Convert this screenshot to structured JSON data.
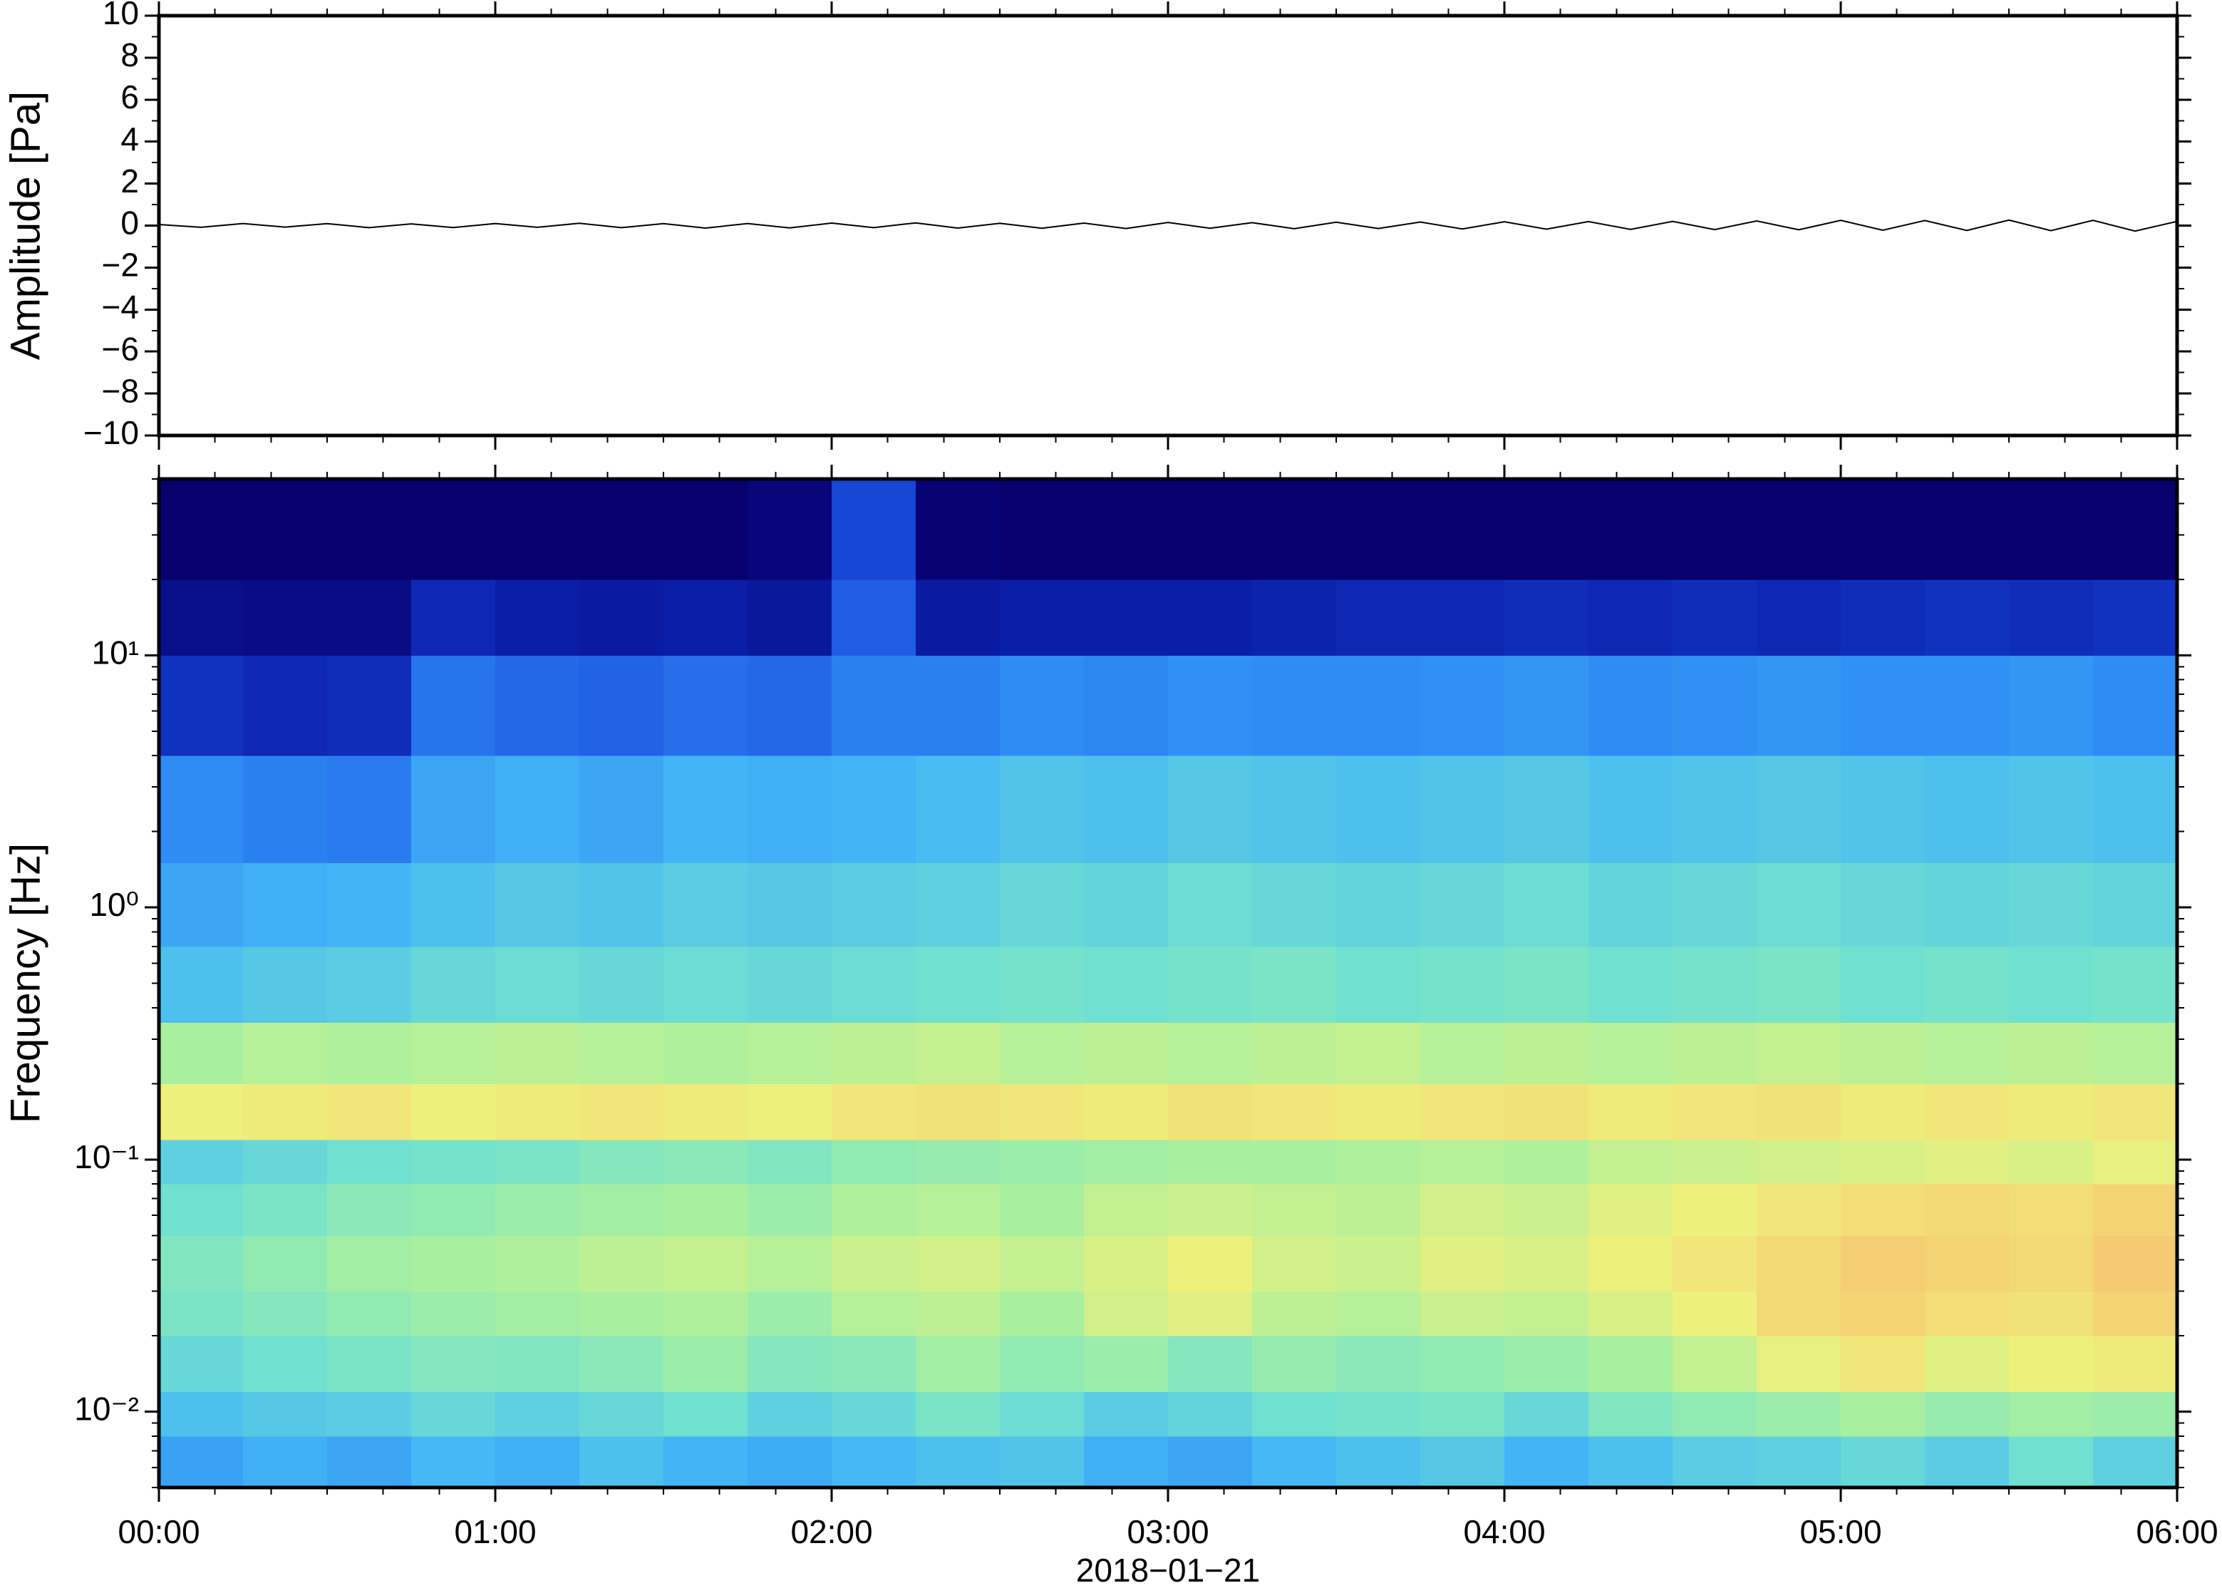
{
  "chart_data": [
    {
      "type": "line",
      "ylabel": "Amplitude [Pa]",
      "x": [
        0,
        0.125,
        0.25,
        0.375,
        0.5,
        0.625,
        0.75,
        0.875,
        1,
        1.125,
        1.25,
        1.375,
        1.5,
        1.625,
        1.75,
        1.875,
        2,
        2.125,
        2.25,
        2.375,
        2.5,
        2.625,
        2.75,
        2.875,
        3,
        3.125,
        3.25,
        3.375,
        3.5,
        3.625,
        3.75,
        3.875,
        4,
        4.125,
        4.25,
        4.375,
        4.5,
        4.625,
        4.75,
        4.875,
        5,
        5.125,
        5.25,
        5.375,
        5.5,
        5.625,
        5.75,
        5.875,
        6
      ],
      "values": [
        0.05,
        -0.08,
        0.1,
        -0.07,
        0.09,
        -0.1,
        0.08,
        -0.09,
        0.1,
        -0.08,
        0.11,
        -0.1,
        0.09,
        -0.12,
        0.1,
        -0.11,
        0.12,
        -0.1,
        0.13,
        -0.12,
        0.11,
        -0.13,
        0.12,
        -0.14,
        0.15,
        -0.13,
        0.14,
        -0.15,
        0.16,
        -0.14,
        0.17,
        -0.16,
        0.18,
        -0.17,
        0.19,
        -0.18,
        0.2,
        -0.19,
        0.22,
        -0.2,
        0.25,
        -0.22,
        0.24,
        -0.23,
        0.26,
        -0.24,
        0.25,
        -0.26,
        0.2
      ],
      "color": "#000000",
      "xlim": [
        0,
        6
      ],
      "xticks": [
        0,
        1,
        2,
        3,
        4,
        5,
        6
      ],
      "ylim": [
        -10,
        10
      ],
      "yticks": [
        {
          "value": -10,
          "label": "−10"
        },
        {
          "value": -8,
          "label": "−8"
        },
        {
          "value": -6,
          "label": "−6"
        },
        {
          "value": -4,
          "label": "−4"
        },
        {
          "value": -2,
          "label": "−2"
        },
        0,
        2,
        4,
        6,
        8,
        10
      ]
    },
    {
      "type": "heatmap",
      "ylabel": "Frequency [Hz]",
      "xlabel": "2018−01−21",
      "xlim": [
        0,
        6
      ],
      "xticks": [
        {
          "value": 0,
          "label": "00:00"
        },
        {
          "value": 1,
          "label": "01:00"
        },
        {
          "value": 2,
          "label": "02:00"
        },
        {
          "value": 3,
          "label": "03:00"
        },
        {
          "value": 4,
          "label": "04:00"
        },
        {
          "value": 5,
          "label": "05:00"
        },
        {
          "value": 6,
          "label": "06:00"
        }
      ],
      "yscale": "log",
      "ylim": [
        0.005,
        50
      ],
      "yticks": [
        {
          "value": 0.01,
          "label": "10⁻²"
        },
        {
          "value": 0.1,
          "label": "10⁻¹"
        },
        {
          "value": 1,
          "label": "10⁰"
        },
        {
          "value": 10,
          "label": "10¹"
        }
      ],
      "x_edges": [
        0,
        0.25,
        0.5,
        0.75,
        1,
        1.25,
        1.5,
        1.75,
        2,
        2.25,
        2.5,
        2.75,
        3,
        3.25,
        3.5,
        3.75,
        4,
        4.25,
        4.5,
        4.75,
        5,
        5.25,
        5.5,
        5.75,
        6
      ],
      "y_edges": [
        0.005,
        0.008,
        0.012,
        0.02,
        0.03,
        0.05,
        0.08,
        0.12,
        0.2,
        0.35,
        0.7,
        1.5,
        4,
        10,
        20,
        50
      ],
      "zlim": [
        0,
        10
      ],
      "colormap": [
        "#08006e",
        "#0a1ea8",
        "#1c50e0",
        "#2f8cf4",
        "#45b8f5",
        "#70e0d0",
        "#a8f0a0",
        "#eef07c",
        "#f8c070",
        "#f08050",
        "#d03020"
      ],
      "z": [
        [
          3.5,
          3.8,
          3.6,
          4,
          3.8,
          4.2,
          3.9,
          3.7,
          4,
          4.2,
          4.3,
          3.8,
          3.6,
          4,
          4.2,
          4.4,
          3.9,
          4.2,
          4.5,
          4.6,
          4.8,
          4.5,
          5,
          4.6
        ],
        [
          4.2,
          4.4,
          4.5,
          4.8,
          4.6,
          4.8,
          5,
          4.6,
          4.8,
          5.2,
          4.9,
          4.5,
          4.7,
          5,
          5.1,
          5.2,
          4.8,
          5.3,
          5.6,
          5.8,
          6,
          5.7,
          5.9,
          5.8
        ],
        [
          4.8,
          5,
          5.2,
          5.4,
          5.3,
          5.5,
          5.8,
          5.4,
          5.5,
          5.9,
          5.6,
          5.8,
          5.4,
          5.7,
          5.5,
          5.6,
          5.8,
          6,
          6.4,
          6.9,
          7.2,
          6.8,
          7,
          7.1
        ],
        [
          5.2,
          5.4,
          5.6,
          5.8,
          5.9,
          6,
          6.1,
          5.8,
          6.2,
          6.3,
          6,
          6.6,
          6.8,
          6.3,
          6.2,
          6.5,
          6.4,
          6.7,
          7,
          7.5,
          7.6,
          7.4,
          7.3,
          7.6
        ],
        [
          5.3,
          5.6,
          5.9,
          6,
          6.1,
          6.3,
          6.4,
          6.2,
          6.5,
          6.6,
          6.4,
          6.7,
          7,
          6.6,
          6.5,
          6.8,
          6.7,
          7,
          7.2,
          7.5,
          7.7,
          7.6,
          7.5,
          7.8
        ],
        [
          5,
          5.2,
          5.5,
          5.6,
          5.8,
          5.9,
          6,
          5.8,
          6.1,
          6.2,
          6,
          6.4,
          6.5,
          6.4,
          6.3,
          6.6,
          6.5,
          6.8,
          7,
          7.2,
          7.4,
          7.5,
          7.4,
          7.6
        ],
        [
          4.6,
          4.8,
          5,
          5.1,
          5.2,
          5.4,
          5.5,
          5.3,
          5.6,
          5.7,
          5.8,
          5.9,
          6,
          6,
          6.1,
          6.2,
          6.1,
          6.4,
          6.5,
          6.6,
          6.7,
          6.8,
          6.7,
          6.9
        ],
        [
          7,
          7.1,
          7.2,
          7,
          7.1,
          7.2,
          7.1,
          7,
          7.2,
          7.3,
          7.2,
          7.1,
          7.3,
          7.2,
          7.1,
          7.2,
          7.3,
          7.1,
          7.2,
          7.3,
          7.1,
          7.2,
          7.1,
          7.2
        ],
        [
          6,
          6.2,
          6.1,
          6.2,
          6.3,
          6.2,
          6.1,
          6.2,
          6.3,
          6.4,
          6.2,
          6.3,
          6.2,
          6.3,
          6.4,
          6.2,
          6.3,
          6.2,
          6.3,
          6.4,
          6.3,
          6.2,
          6.3,
          6.2
        ],
        [
          4.2,
          4.4,
          4.5,
          4.8,
          4.9,
          4.8,
          4.9,
          4.8,
          4.9,
          5,
          5.1,
          5,
          5.1,
          5.2,
          5,
          5.1,
          5.2,
          5,
          5.1,
          5.2,
          5,
          5.1,
          5,
          5.1
        ],
        [
          3.6,
          3.8,
          3.9,
          4.2,
          4.4,
          4.3,
          4.5,
          4.4,
          4.5,
          4.6,
          4.8,
          4.7,
          4.9,
          4.8,
          4.7,
          4.8,
          4.9,
          4.7,
          4.8,
          4.9,
          4.8,
          4.7,
          4.8,
          4.7
        ],
        [
          3,
          2.8,
          2.7,
          3.6,
          3.8,
          3.6,
          3.9,
          3.8,
          3.9,
          4.1,
          4.3,
          4.2,
          4.4,
          4.3,
          4.2,
          4.3,
          4.4,
          4.2,
          4.3,
          4.4,
          4.3,
          4.2,
          4.3,
          4.2
        ],
        [
          1.4,
          1.2,
          1.3,
          2.6,
          2.4,
          2.3,
          2.5,
          2.4,
          2.8,
          2.8,
          3,
          2.9,
          3.1,
          3,
          3,
          3.1,
          3.2,
          3,
          3.1,
          3.2,
          3.1,
          3.1,
          3.2,
          3
        ],
        [
          0.5,
          0.4,
          0.4,
          1.2,
          1,
          0.9,
          1,
          0.8,
          2.2,
          0.9,
          1,
          1,
          1,
          1.1,
          1.2,
          1.2,
          1.3,
          1.2,
          1.3,
          1.2,
          1.3,
          1.4,
          1.3,
          1.4
        ],
        [
          0,
          0,
          0,
          0,
          0,
          0,
          0,
          0.2,
          1.8,
          0.1,
          0,
          0,
          0,
          0,
          0,
          0,
          0,
          0,
          0,
          0,
          0,
          0,
          0,
          0
        ]
      ]
    }
  ]
}
